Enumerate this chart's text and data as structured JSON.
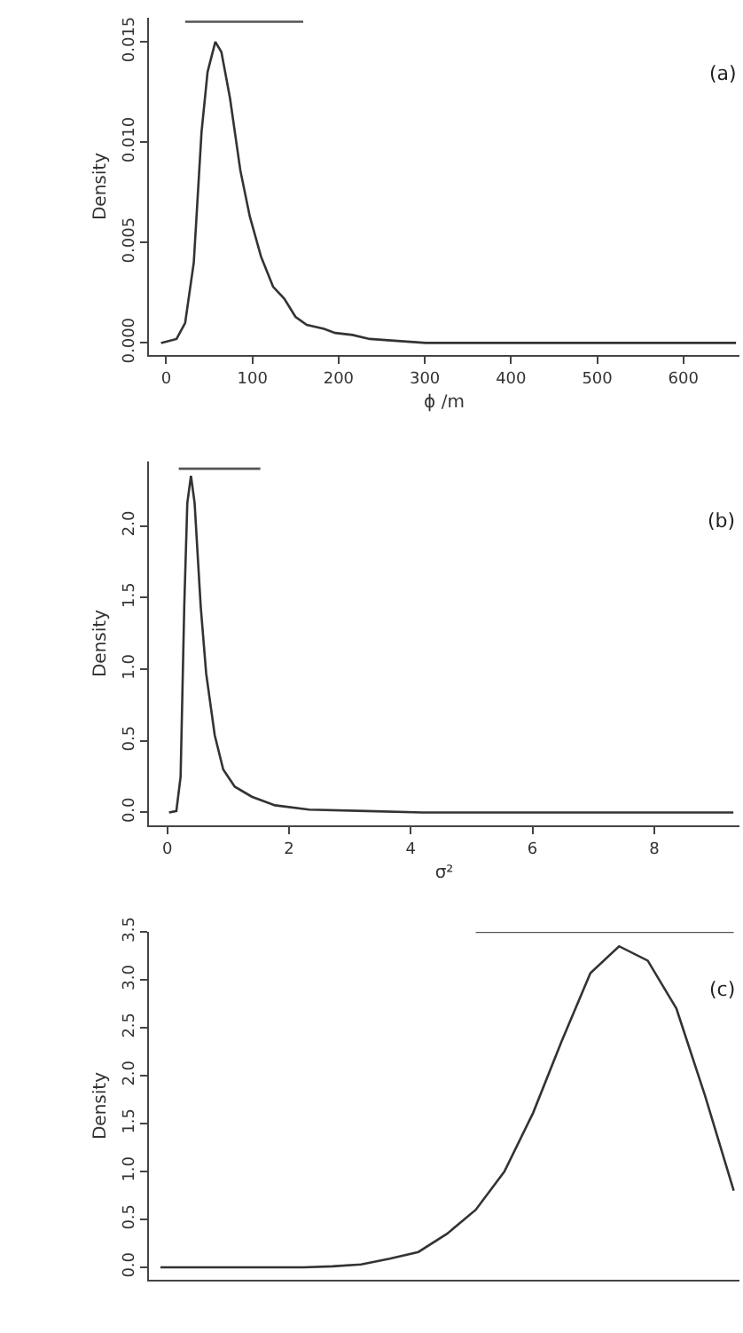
{
  "chart_data": [
    {
      "type": "line",
      "xlabel": "ϕ /m",
      "ylabel": "Density",
      "annotations": [
        "(a)"
      ],
      "grid": false,
      "marker": "none",
      "line_style": "solid",
      "xlim": [
        -20,
        665
      ],
      "xticks": [
        0,
        100,
        200,
        300,
        400,
        500,
        600
      ],
      "ylim": [
        -0.0006,
        0.0162
      ],
      "yticks": [
        {
          "value": 0,
          "label": "0.000"
        },
        {
          "value": 0.005,
          "label": "0.005"
        },
        {
          "value": 0.01,
          "label": "0.010"
        },
        {
          "value": 0.015,
          "label": "0.015"
        }
      ],
      "series": [
        {
          "color": "#333333",
          "x": [
            -6,
            12,
            22,
            32,
            41,
            48,
            57,
            64,
            74,
            86,
            97,
            110,
            124,
            137,
            150,
            163,
            183,
            196,
            216,
            236,
            268,
            301,
            661
          ],
          "values": [
            0,
            0.0002,
            0.001,
            0.004,
            0.0105,
            0.0135,
            0.015,
            0.0145,
            0.0122,
            0.0086,
            0.0063,
            0.0043,
            0.0028,
            0.0022,
            0.0013,
            0.0009,
            0.0007,
            0.0005,
            0.0004,
            0.0002,
            0.0001,
            0,
            0
          ]
        },
        {
          "color": "#555555",
          "x": [
            22,
            159
          ],
          "values": [
            0.016,
            0.016
          ]
        }
      ]
    },
    {
      "type": "line",
      "xlabel": "σ²",
      "ylabel": "Density",
      "annotations": [
        "(b)"
      ],
      "grid": false,
      "marker": "none",
      "line_style": "solid",
      "xlim": [
        -0.3,
        9.4
      ],
      "xticks": [
        0,
        2,
        4,
        6,
        8
      ],
      "ylim": [
        -0.09,
        2.45
      ],
      "yticks": [
        {
          "value": 0,
          "label": "0.0"
        },
        {
          "value": 0.5,
          "label": "0.5"
        },
        {
          "value": 1,
          "label": "1.0"
        },
        {
          "value": 1.5,
          "label": "1.5"
        },
        {
          "value": 2,
          "label": "2.0"
        }
      ],
      "series": [
        {
          "color": "#333333",
          "x": [
            0.03,
            0.15,
            0.22,
            0.28,
            0.33,
            0.39,
            0.45,
            0.55,
            0.64,
            0.78,
            0.92,
            1.11,
            1.39,
            1.77,
            2.33,
            3.28,
            4.2,
            9.3
          ],
          "values": [
            0,
            0.01,
            0.25,
            1.44,
            2.16,
            2.35,
            2.16,
            1.44,
            0.97,
            0.54,
            0.3,
            0.18,
            0.11,
            0.05,
            0.02,
            0.01,
            0,
            0
          ]
        },
        {
          "color": "#555555",
          "x": [
            0.19,
            1.53
          ],
          "values": [
            2.4,
            2.4
          ]
        }
      ]
    },
    {
      "type": "line",
      "ylabel": "Density",
      "annotations": [
        "(c)"
      ],
      "grid": false,
      "marker": "none",
      "line_style": "solid",
      "tick_labels": "y",
      "categories": [
        null,
        null,
        null,
        null,
        null,
        null,
        null,
        null,
        null,
        null,
        null,
        null,
        null,
        null,
        null,
        null,
        null,
        null,
        null,
        null,
        null
      ],
      "ylim": [
        -0.13,
        3.5
      ],
      "yticks": [
        {
          "value": 0,
          "label": "0.0"
        },
        {
          "value": 0.5,
          "label": "0.5"
        },
        {
          "value": 1,
          "label": "1.0"
        },
        {
          "value": 1.5,
          "label": "1.5"
        },
        {
          "value": 2,
          "label": "2.0"
        },
        {
          "value": 2.5,
          "label": "2.5"
        },
        {
          "value": 3,
          "label": "3.0"
        },
        {
          "value": 3.5,
          "label": "3.5"
        }
      ],
      "series": [
        {
          "color": "#333333",
          "values": [
            0,
            0,
            0,
            0,
            0,
            0,
            0.01,
            0.03,
            0.09,
            0.16,
            0.35,
            0.6,
            1.0,
            1.61,
            2.36,
            3.07,
            3.35,
            3.2,
            2.7,
            1.79,
            0.8
          ]
        },
        {
          "color": "#555555",
          "values": [
            null,
            null,
            null,
            null,
            null,
            null,
            null,
            null,
            null,
            null,
            null,
            3.5,
            3.5,
            3.5,
            3.5,
            3.5,
            3.5,
            3.5,
            3.5,
            3.5,
            3.5
          ]
        }
      ]
    }
  ]
}
